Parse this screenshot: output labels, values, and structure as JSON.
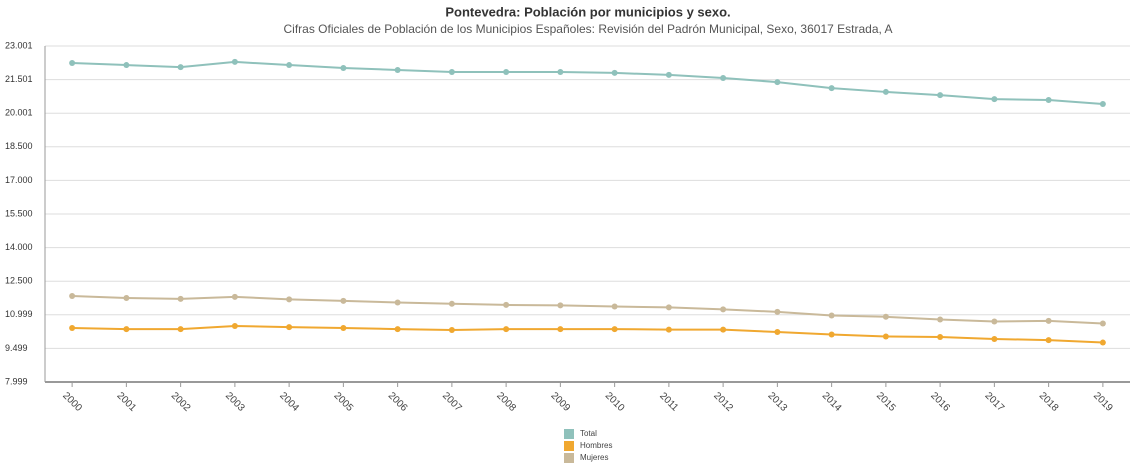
{
  "chart_data": {
    "type": "line",
    "title": "Pontevedra: Población por municipios y sexo.",
    "subtitle": "Cifras Oficiales de Población de los Municipios Españoles: Revisión del Padrón Municipal, Sexo, 36017 Estrada, A",
    "categories": [
      "2000",
      "2001",
      "2002",
      "2003",
      "2004",
      "2005",
      "2006",
      "2007",
      "2008",
      "2009",
      "2010",
      "2011",
      "2012",
      "2013",
      "2014",
      "2015",
      "2016",
      "2017",
      "2018",
      "2019"
    ],
    "series": [
      {
        "name": "Total",
        "color": "#8fc1bb",
        "values": [
          22240,
          22150,
          22060,
          22290,
          22150,
          22020,
          21930,
          21840,
          21840,
          21840,
          21800,
          21710,
          21570,
          21390,
          21120,
          20950,
          20810,
          20630,
          20590,
          20410
        ]
      },
      {
        "name": "Hombres",
        "color": "#f0a830",
        "values": [
          10410,
          10360,
          10360,
          10500,
          10450,
          10410,
          10360,
          10320,
          10360,
          10360,
          10360,
          10340,
          10340,
          10230,
          10120,
          10030,
          10010,
          9920,
          9870,
          9760
        ]
      },
      {
        "name": "Mujeres",
        "color": "#c9b99a",
        "values": [
          11840,
          11750,
          11710,
          11800,
          11690,
          11620,
          11550,
          11490,
          11440,
          11420,
          11370,
          11330,
          11240,
          11130,
          10970,
          10910,
          10790,
          10700,
          10730,
          10610
        ]
      }
    ],
    "ylim": [
      7999,
      23001
    ],
    "yticks": [
      {
        "value": 7999,
        "label": "7.999"
      },
      {
        "value": 9499,
        "label": "9.499"
      },
      {
        "value": 10999,
        "label": "10.999"
      },
      {
        "value": 12500,
        "label": "12.500"
      },
      {
        "value": 14000,
        "label": "14.000"
      },
      {
        "value": 15500,
        "label": "15.500"
      },
      {
        "value": 17000,
        "label": "17.000"
      },
      {
        "value": 18500,
        "label": "18.500"
      },
      {
        "value": 20001,
        "label": "20.001"
      },
      {
        "value": 21501,
        "label": "21.501"
      },
      {
        "value": 23001,
        "label": "23.001"
      }
    ],
    "grid": true
  }
}
